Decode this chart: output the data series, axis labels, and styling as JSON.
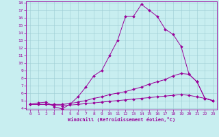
{
  "xlabel": "Windchill (Refroidissement éolien,°C)",
  "bg_color": "#c8eef0",
  "line_color": "#990099",
  "xlim": [
    -0.5,
    23.5
  ],
  "ylim": [
    3.8,
    18.2
  ],
  "xticks": [
    0,
    1,
    2,
    3,
    4,
    5,
    6,
    7,
    8,
    9,
    10,
    11,
    12,
    13,
    14,
    15,
    16,
    17,
    18,
    19,
    20,
    21,
    22,
    23
  ],
  "yticks": [
    4,
    5,
    6,
    7,
    8,
    9,
    10,
    11,
    12,
    13,
    14,
    15,
    16,
    17,
    18
  ],
  "line1_x": [
    0,
    1,
    2,
    3,
    4,
    5,
    6,
    7,
    8,
    9,
    10,
    11,
    12,
    13,
    14,
    15,
    16,
    17,
    18,
    19,
    20,
    21,
    22,
    23
  ],
  "line1_y": [
    4.5,
    4.7,
    4.8,
    4.2,
    3.9,
    4.5,
    5.5,
    6.8,
    8.3,
    9.0,
    11.0,
    13.0,
    16.2,
    16.2,
    17.8,
    17.0,
    16.2,
    14.5,
    13.8,
    12.2,
    8.5,
    7.5,
    5.3,
    5.0
  ],
  "line2_x": [
    0,
    1,
    2,
    3,
    4,
    5,
    6,
    7,
    8,
    9,
    10,
    11,
    12,
    13,
    14,
    15,
    16,
    17,
    18,
    19,
    20,
    21,
    22,
    23
  ],
  "line2_y": [
    4.5,
    4.5,
    4.5,
    4.5,
    4.5,
    4.6,
    4.8,
    5.0,
    5.3,
    5.5,
    5.8,
    6.0,
    6.2,
    6.5,
    6.8,
    7.2,
    7.5,
    7.8,
    8.3,
    8.6,
    8.5,
    7.5,
    5.3,
    5.0
  ],
  "line3_x": [
    0,
    1,
    2,
    3,
    4,
    5,
    6,
    7,
    8,
    9,
    10,
    11,
    12,
    13,
    14,
    15,
    16,
    17,
    18,
    19,
    20,
    21,
    22,
    23
  ],
  "line3_y": [
    4.5,
    4.5,
    4.5,
    4.4,
    4.3,
    4.4,
    4.5,
    4.6,
    4.7,
    4.8,
    4.9,
    5.0,
    5.1,
    5.2,
    5.3,
    5.4,
    5.5,
    5.6,
    5.7,
    5.8,
    5.7,
    5.5,
    5.3,
    5.0
  ]
}
